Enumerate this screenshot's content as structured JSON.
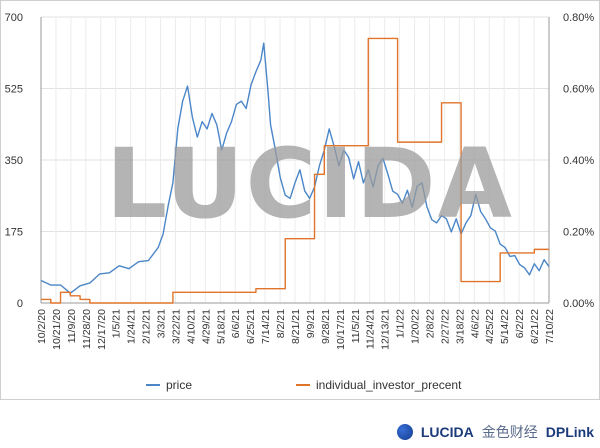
{
  "chart_data": {
    "type": "line",
    "y_left": {
      "ticks": [
        "0",
        "175",
        "350",
        "525",
        "700"
      ],
      "range": [
        0,
        700
      ]
    },
    "y_right": {
      "ticks": [
        "0.00%",
        "0.20%",
        "0.40%",
        "0.60%",
        "0.80%"
      ],
      "range": [
        0,
        0.8
      ]
    },
    "x_tick_labels": [
      "10/2/20",
      "10/21/20",
      "11/9/20",
      "11/28/20",
      "12/17/20",
      "1/5/21",
      "1/24/21",
      "2/12/21",
      "3/3/21",
      "3/22/21",
      "4/10/21",
      "4/29/21",
      "5/18/21",
      "6/6/21",
      "6/25/21",
      "7/14/21",
      "8/2/21",
      "8/21/21",
      "9/9/21",
      "9/28/21",
      "10/17/21",
      "11/5/21",
      "11/24/21",
      "12/13/21",
      "1/1/22",
      "1/20/22",
      "2/8/22",
      "2/27/22",
      "3/18/22",
      "4/6/22",
      "4/25/22",
      "5/14/22",
      "6/2/22",
      "6/21/22",
      "7/10/22"
    ],
    "grid": true,
    "legend_position": "bottom",
    "series": [
      {
        "name": "price",
        "axis": "left",
        "color": "#4a86c8",
        "values": [
          [
            0,
            55
          ],
          [
            2,
            50
          ],
          [
            4,
            38
          ],
          [
            6,
            30
          ],
          [
            8,
            36
          ],
          [
            10,
            55
          ],
          [
            12,
            65
          ],
          [
            14,
            80
          ],
          [
            16,
            85
          ],
          [
            18,
            90
          ],
          [
            20,
            95
          ],
          [
            22,
            110
          ],
          [
            24,
            130
          ],
          [
            25,
            175
          ],
          [
            26,
            230
          ],
          [
            27,
            300
          ],
          [
            28,
            420
          ],
          [
            29,
            500
          ],
          [
            30,
            525
          ],
          [
            31,
            460
          ],
          [
            32,
            400
          ],
          [
            33,
            450
          ],
          [
            34,
            420
          ],
          [
            35,
            470
          ],
          [
            36,
            430
          ],
          [
            37,
            380
          ],
          [
            38,
            410
          ],
          [
            39,
            450
          ],
          [
            40,
            480
          ],
          [
            41,
            500
          ],
          [
            42,
            470
          ],
          [
            43,
            540
          ],
          [
            44,
            560
          ],
          [
            45,
            600
          ],
          [
            45.6,
            630
          ],
          [
            46.5,
            520
          ],
          [
            47,
            430
          ],
          [
            48,
            380
          ],
          [
            49,
            300
          ],
          [
            50,
            270
          ],
          [
            51,
            250
          ],
          [
            52,
            300
          ],
          [
            53,
            320
          ],
          [
            54,
            280
          ],
          [
            55,
            250
          ],
          [
            56,
            290
          ],
          [
            57,
            330
          ],
          [
            58,
            380
          ],
          [
            59,
            420
          ],
          [
            60,
            390
          ],
          [
            61,
            330
          ],
          [
            62,
            380
          ],
          [
            63,
            350
          ],
          [
            64,
            310
          ],
          [
            65,
            340
          ],
          [
            66,
            300
          ],
          [
            67,
            320
          ],
          [
            68,
            290
          ],
          [
            69,
            330
          ],
          [
            70,
            360
          ],
          [
            71,
            310
          ],
          [
            72,
            280
          ],
          [
            73,
            260
          ],
          [
            74,
            250
          ],
          [
            75,
            270
          ],
          [
            76,
            240
          ],
          [
            77,
            280
          ],
          [
            78,
            300
          ],
          [
            79,
            230
          ],
          [
            80,
            210
          ],
          [
            81,
            190
          ],
          [
            82,
            220
          ],
          [
            83,
            200
          ],
          [
            84,
            180
          ],
          [
            85,
            200
          ],
          [
            86,
            175
          ],
          [
            87,
            190
          ],
          [
            88,
            220
          ],
          [
            89,
            260
          ],
          [
            90,
            230
          ],
          [
            91,
            200
          ],
          [
            92,
            190
          ],
          [
            93,
            170
          ],
          [
            94,
            150
          ],
          [
            95,
            130
          ],
          [
            96,
            120
          ],
          [
            97,
            110
          ],
          [
            98,
            100
          ],
          [
            99,
            80
          ],
          [
            100,
            75
          ],
          [
            101,
            90
          ],
          [
            102,
            85
          ],
          [
            103,
            100
          ],
          [
            104,
            95
          ]
        ]
      },
      {
        "name": "individual_investor_precent",
        "axis": "right",
        "color": "#e0742a",
        "values": [
          [
            0,
            0.01
          ],
          [
            2,
            0.0
          ],
          [
            4,
            0.03
          ],
          [
            6,
            0.02
          ],
          [
            8,
            0.01
          ],
          [
            10,
            0.0
          ],
          [
            26,
            0.0
          ],
          [
            27,
            0.03
          ],
          [
            41,
            0.03
          ],
          [
            42,
            0.03
          ],
          [
            44,
            0.04
          ],
          [
            49,
            0.04
          ],
          [
            50,
            0.18
          ],
          [
            55,
            0.18
          ],
          [
            56,
            0.36
          ],
          [
            57,
            0.36
          ],
          [
            58,
            0.44
          ],
          [
            66,
            0.44
          ],
          [
            67,
            0.74
          ],
          [
            72,
            0.74
          ],
          [
            73,
            0.45
          ],
          [
            81,
            0.45
          ],
          [
            82,
            0.56
          ],
          [
            85,
            0.56
          ],
          [
            86,
            0.06
          ],
          [
            93,
            0.06
          ],
          [
            94,
            0.14
          ],
          [
            100,
            0.14
          ],
          [
            101,
            0.15
          ],
          [
            104,
            0.15
          ]
        ]
      }
    ],
    "x_domain": [
      0,
      104
    ]
  },
  "watermark": "LUCIDA",
  "brand": {
    "lucida_text": "LUCIDA",
    "partner_text": "金色财经",
    "partner_suffix": "DPLink"
  }
}
